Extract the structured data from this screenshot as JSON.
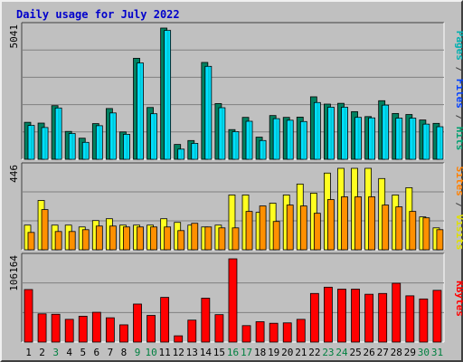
{
  "page": {
    "title": "Daily usage for July 2022"
  },
  "colors": {
    "pages": "#00b08f",
    "files": "#0040ff",
    "hits": "#007040",
    "sites": "#ff8000",
    "visits": "#ffff00",
    "kbytes": "#ff0000",
    "hits_bar": "#008060",
    "files_bar": "#00e0ff",
    "visits_bar": "#ffff20",
    "sites_bar": "#ff9000",
    "kbytes_bar": "#ff0000",
    "plot_bg": "#c0c0c0",
    "grid": "#808080",
    "title": "#0000cc"
  },
  "chart_data": [
    {
      "type": "bar",
      "title": "Daily usage for July 2022",
      "ylabel_parts": [
        {
          "text": "Pages",
          "color": "#00b0b0"
        },
        {
          "text": " / ",
          "color": "#404040"
        },
        {
          "text": "Files",
          "color": "#0040ff"
        },
        {
          "text": " / ",
          "color": "#404040"
        },
        {
          "text": "Hits",
          "color": "#00a070"
        }
      ],
      "ymax_label": "5041",
      "ylim": [
        0,
        5041
      ],
      "grid": true,
      "series": [
        {
          "name": "Hits",
          "color": "#008060",
          "values": [
            1420,
            1390,
            2060,
            1070,
            810,
            1370,
            1950,
            1050,
            3880,
            1990,
            5041,
            570,
            720,
            3720,
            2140,
            1140,
            1610,
            850,
            1680,
            1610,
            1620,
            2400,
            2120,
            2150,
            1830,
            1640,
            2250,
            1760,
            1720,
            1510,
            1380
          ]
        },
        {
          "name": "Files",
          "color": "#00e0ff",
          "values": [
            1300,
            1220,
            1970,
            990,
            650,
            1290,
            1780,
            960,
            3700,
            1750,
            4950,
            390,
            610,
            3570,
            1980,
            1060,
            1460,
            720,
            1560,
            1500,
            1450,
            2180,
            2000,
            2000,
            1610,
            1590,
            2080,
            1580,
            1580,
            1350,
            1250
          ]
        },
        {
          "name": "Pages",
          "color": "#00b0b0",
          "values": [
            1300,
            1220,
            1970,
            990,
            650,
            1290,
            1780,
            960,
            3700,
            1750,
            4950,
            390,
            610,
            3570,
            1980,
            1060,
            1460,
            720,
            1560,
            1500,
            1450,
            2180,
            2000,
            2000,
            1610,
            1590,
            2080,
            1580,
            1580,
            1350,
            1250
          ]
        }
      ]
    },
    {
      "type": "bar",
      "ylabel_parts": [
        {
          "text": "Sites",
          "color": "#ff8000"
        },
        {
          "text": " / ",
          "color": "#404040"
        },
        {
          "text": "Visits",
          "color": "#e0e000"
        }
      ],
      "ymax_label": "446",
      "ylim": [
        0,
        446
      ],
      "grid": true,
      "series": [
        {
          "name": "Visits",
          "color": "#ffff20",
          "values": [
            135,
            270,
            135,
            135,
            125,
            160,
            170,
            135,
            135,
            135,
            170,
            150,
            135,
            125,
            135,
            300,
            300,
            205,
            255,
            300,
            360,
            310,
            420,
            446,
            446,
            446,
            390,
            300,
            340,
            180,
            120
          ]
        },
        {
          "name": "Sites",
          "color": "#ff9000",
          "values": [
            95,
            220,
            100,
            100,
            110,
            130,
            130,
            125,
            125,
            125,
            125,
            105,
            145,
            125,
            120,
            120,
            210,
            240,
            155,
            245,
            240,
            200,
            275,
            290,
            290,
            290,
            245,
            235,
            210,
            175,
            110
          ]
        }
      ]
    },
    {
      "type": "bar",
      "ylabel_parts": [
        {
          "text": "KBytes",
          "color": "#ff0000"
        }
      ],
      "ymax_label": "106164",
      "ylim": [
        0,
        106164
      ],
      "grid": true,
      "series": [
        {
          "name": "KBytes",
          "color": "#ff0000",
          "values": [
            67000,
            36000,
            35500,
            29000,
            33000,
            38000,
            31000,
            22000,
            48500,
            34000,
            57000,
            8000,
            28000,
            56000,
            35000,
            106164,
            21000,
            26000,
            24000,
            24500,
            29000,
            62000,
            70000,
            67500,
            67500,
            61000,
            62000,
            75000,
            59000,
            55000,
            66000
          ]
        }
      ]
    }
  ],
  "x_axis": {
    "days": [
      "1",
      "2",
      "3",
      "4",
      "5",
      "6",
      "7",
      "8",
      "9",
      "10",
      "11",
      "12",
      "13",
      "14",
      "15",
      "16",
      "17",
      "18",
      "19",
      "20",
      "21",
      "22",
      "23",
      "24",
      "25",
      "26",
      "27",
      "28",
      "29",
      "30",
      "31"
    ],
    "day_colors": [
      "#000000",
      "#000000",
      "#008040",
      "#000000",
      "#000000",
      "#000000",
      "#000000",
      "#000000",
      "#008040",
      "#008040",
      "#000000",
      "#000000",
      "#000000",
      "#000000",
      "#000000",
      "#008040",
      "#008040",
      "#000000",
      "#000000",
      "#000000",
      "#000000",
      "#000000",
      "#008040",
      "#008040",
      "#000000",
      "#000000",
      "#000000",
      "#000000",
      "#000000",
      "#008040",
      "#008040"
    ]
  }
}
